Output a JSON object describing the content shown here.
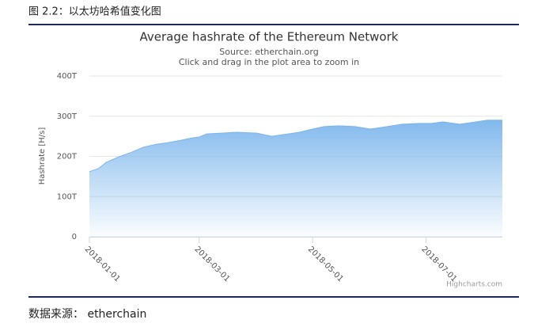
{
  "figure_title": "图 2.2：以太坊哈希值变化图",
  "source": "数据来源：  etherchain",
  "chart_data": {
    "type": "area",
    "title": "Average hashrate of the Ethereum Network",
    "subtitle": "Source: etherchain.org",
    "hint": "Click and drag in the plot area to zoom in",
    "y_label": "Hashrate [H/s]",
    "credits": "Highcharts.com",
    "x": [
      "2018-01-01",
      "2018-01-06",
      "2018-01-10",
      "2018-01-17",
      "2018-01-23",
      "2018-01-30",
      "2018-02-06",
      "2018-02-12",
      "2018-02-19",
      "2018-02-25",
      "2018-03-01",
      "2018-03-05",
      "2018-03-13",
      "2018-03-21",
      "2018-04-01",
      "2018-04-09",
      "2018-04-15",
      "2018-04-24",
      "2018-05-01",
      "2018-05-07",
      "2018-05-15",
      "2018-05-24",
      "2018-06-01",
      "2018-06-10",
      "2018-06-18",
      "2018-06-27",
      "2018-07-04",
      "2018-07-10",
      "2018-07-19",
      "2018-07-25",
      "2018-08-03",
      "2018-08-11"
    ],
    "values": [
      162,
      170,
      185,
      199,
      209,
      223,
      230,
      234,
      240,
      246,
      248,
      256,
      258,
      260,
      258,
      250,
      254,
      260,
      268,
      274,
      276,
      274,
      268,
      274,
      280,
      282,
      282,
      286,
      280,
      284,
      290,
      290
    ],
    "color": "#7cb5ec",
    "xlim": [
      "2018-01-01",
      "2018-08-11"
    ],
    "xticks": [
      "2018-01-01",
      "2018-03-01",
      "2018-05-01",
      "2018-07-01"
    ],
    "ylim": [
      0,
      400
    ],
    "yticks": [
      0,
      {
        "value": 100,
        "label": "100T"
      },
      {
        "value": 200,
        "label": "200T"
      },
      {
        "value": 300,
        "label": "300T"
      },
      {
        "value": 400,
        "label": "400T"
      }
    ],
    "grid": true
  }
}
